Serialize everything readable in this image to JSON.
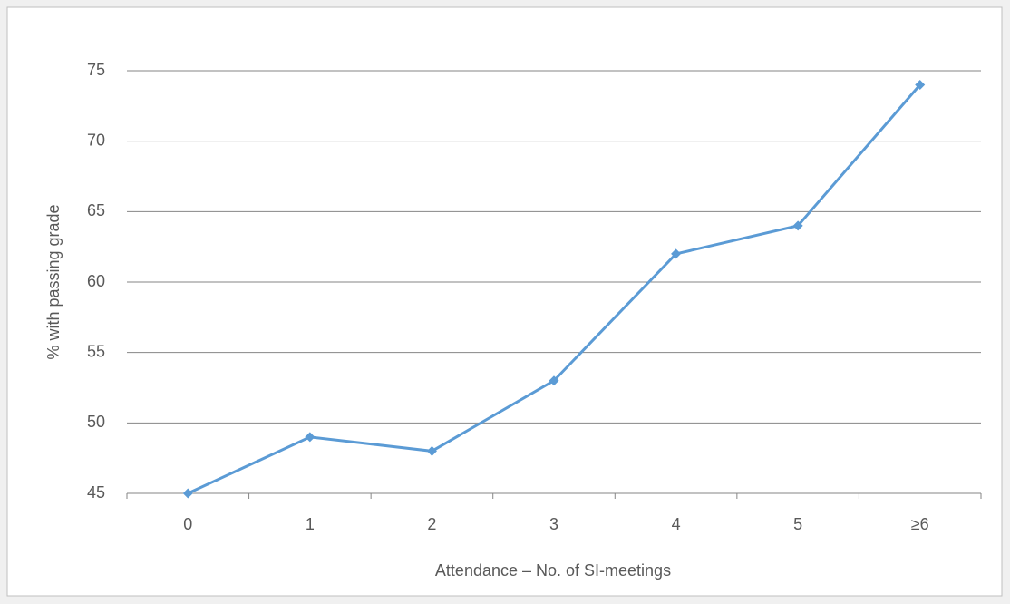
{
  "chart_data": {
    "type": "line",
    "x_label": "Attendance – No. of SI-meetings",
    "y_label": "% with passing grade",
    "categories": [
      "0",
      "1",
      "2",
      "3",
      "4",
      "5",
      "≥6"
    ],
    "series": [
      {
        "name": "% with passing grade",
        "color": "#5b9bd5",
        "values": [
          45,
          49,
          48,
          53,
          62,
          64,
          74
        ]
      }
    ],
    "ylim": [
      45,
      75
    ],
    "yticks": [
      45,
      50,
      55,
      60,
      65,
      70,
      75
    ],
    "grid": true
  }
}
